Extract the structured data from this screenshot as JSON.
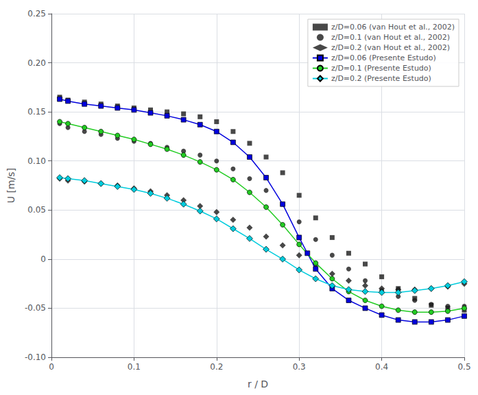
{
  "chart_data": {
    "type": "line",
    "xlabel": "r / D",
    "ylabel": "U [m/s]",
    "xlim": [
      0.0,
      0.5
    ],
    "ylim": [
      -0.1,
      0.25
    ],
    "xticks": [
      0,
      0.1,
      0.2,
      0.3,
      0.4,
      0.5
    ],
    "yticks": [
      {
        "value": -0.1,
        "label": "-0.10"
      },
      -0.05,
      0,
      0.05,
      {
        "value": 0.1,
        "label": "0.10"
      },
      0.15,
      {
        "value": 0.2,
        "label": "0.20"
      },
      0.25
    ],
    "grid": true,
    "legend": "upper right",
    "series": [
      {
        "name": "z/D=0.06 (van Hout et al., 2002)",
        "type": "scatter",
        "marker": "square",
        "line_style": "none",
        "color": "#1a1a1a",
        "x": [
          0.01,
          0.02,
          0.04,
          0.06,
          0.08,
          0.1,
          0.12,
          0.14,
          0.16,
          0.18,
          0.2,
          0.22,
          0.24,
          0.26,
          0.28,
          0.3,
          0.32,
          0.34,
          0.36,
          0.38,
          0.4,
          0.42,
          0.44,
          0.46,
          0.48,
          0.5
        ],
        "values": [
          0.165,
          0.162,
          0.16,
          0.158,
          0.156,
          0.154,
          0.152,
          0.15,
          0.148,
          0.145,
          0.14,
          0.13,
          0.118,
          0.104,
          0.088,
          0.065,
          0.042,
          0.022,
          0.006,
          -0.005,
          -0.018,
          -0.03,
          -0.04,
          -0.047,
          -0.05,
          -0.052
        ]
      },
      {
        "name": "z/D=0.1 (van Hout et al., 2002)",
        "type": "scatter",
        "marker": "circle",
        "line_style": "none",
        "color": "#1a1a1a",
        "x": [
          0.01,
          0.02,
          0.04,
          0.06,
          0.08,
          0.1,
          0.12,
          0.14,
          0.16,
          0.18,
          0.2,
          0.22,
          0.24,
          0.26,
          0.28,
          0.3,
          0.32,
          0.34,
          0.36,
          0.38,
          0.4,
          0.42,
          0.44,
          0.46,
          0.48,
          0.5
        ],
        "values": [
          0.138,
          0.134,
          0.13,
          0.127,
          0.123,
          0.12,
          0.118,
          0.114,
          0.11,
          0.106,
          0.1,
          0.092,
          0.082,
          0.07,
          0.056,
          0.038,
          0.02,
          0.004,
          -0.01,
          -0.022,
          -0.032,
          -0.038,
          -0.042,
          -0.046,
          -0.048,
          -0.048
        ]
      },
      {
        "name": "z/D=0.2 (van Hout et al., 2002)",
        "type": "scatter",
        "marker": "diamond",
        "line_style": "none",
        "color": "#1a1a1a",
        "x": [
          0.01,
          0.02,
          0.04,
          0.06,
          0.08,
          0.1,
          0.12,
          0.14,
          0.16,
          0.18,
          0.2,
          0.22,
          0.24,
          0.26,
          0.28,
          0.3,
          0.32,
          0.34,
          0.36,
          0.38,
          0.4,
          0.42,
          0.44,
          0.46,
          0.48,
          0.5
        ],
        "values": [
          0.082,
          0.08,
          0.079,
          0.077,
          0.075,
          0.072,
          0.069,
          0.065,
          0.06,
          0.054,
          0.048,
          0.04,
          0.032,
          0.023,
          0.014,
          0.004,
          -0.006,
          -0.015,
          -0.022,
          -0.027,
          -0.03,
          -0.031,
          -0.031,
          -0.03,
          -0.028,
          -0.025
        ]
      },
      {
        "name": "z/D=0.06 (Presente Estudo)",
        "type": "line",
        "marker": "square",
        "line_style": "solid",
        "color": "#0000dd",
        "x": [
          0.01,
          0.02,
          0.04,
          0.06,
          0.08,
          0.1,
          0.12,
          0.14,
          0.16,
          0.18,
          0.2,
          0.22,
          0.24,
          0.26,
          0.28,
          0.3,
          0.31,
          0.32,
          0.34,
          0.36,
          0.38,
          0.4,
          0.42,
          0.44,
          0.46,
          0.48,
          0.5
        ],
        "values": [
          0.163,
          0.161,
          0.158,
          0.156,
          0.154,
          0.152,
          0.149,
          0.146,
          0.142,
          0.137,
          0.13,
          0.119,
          0.104,
          0.083,
          0.056,
          0.022,
          0.006,
          -0.01,
          -0.03,
          -0.042,
          -0.05,
          -0.057,
          -0.062,
          -0.064,
          -0.064,
          -0.062,
          -0.058
        ]
      },
      {
        "name": "z/D=0.1 (Presente Estudo)",
        "type": "line",
        "marker": "circle",
        "line_style": "solid",
        "color": "#22cc22",
        "x": [
          0.01,
          0.02,
          0.04,
          0.06,
          0.08,
          0.1,
          0.12,
          0.14,
          0.16,
          0.18,
          0.2,
          0.22,
          0.24,
          0.26,
          0.28,
          0.3,
          0.32,
          0.34,
          0.36,
          0.38,
          0.4,
          0.42,
          0.44,
          0.46,
          0.48,
          0.5
        ],
        "values": [
          0.14,
          0.138,
          0.134,
          0.13,
          0.126,
          0.122,
          0.117,
          0.112,
          0.106,
          0.099,
          0.091,
          0.081,
          0.068,
          0.053,
          0.035,
          0.015,
          -0.004,
          -0.02,
          -0.033,
          -0.042,
          -0.048,
          -0.052,
          -0.054,
          -0.054,
          -0.053,
          -0.05
        ]
      },
      {
        "name": "z/D=0.2 (Presente Estudo)",
        "type": "line",
        "marker": "diamond",
        "line_style": "solid",
        "color": "#00ccdd",
        "x": [
          0.01,
          0.02,
          0.04,
          0.06,
          0.08,
          0.1,
          0.12,
          0.14,
          0.16,
          0.18,
          0.2,
          0.22,
          0.24,
          0.26,
          0.28,
          0.3,
          0.32,
          0.34,
          0.36,
          0.38,
          0.4,
          0.42,
          0.44,
          0.46,
          0.48,
          0.5
        ],
        "values": [
          0.083,
          0.082,
          0.08,
          0.077,
          0.074,
          0.071,
          0.067,
          0.062,
          0.056,
          0.049,
          0.041,
          0.031,
          0.021,
          0.01,
          0.0,
          -0.011,
          -0.02,
          -0.027,
          -0.031,
          -0.033,
          -0.034,
          -0.034,
          -0.032,
          -0.03,
          -0.027,
          -0.023
        ]
      }
    ]
  }
}
